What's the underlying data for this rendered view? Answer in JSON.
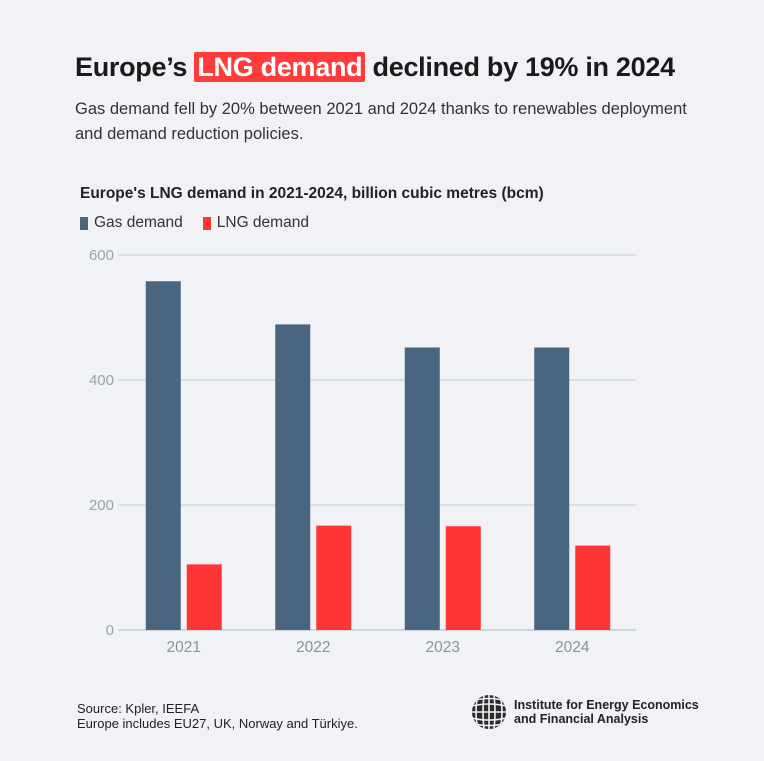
{
  "headline": {
    "before": "Europe’s ",
    "highlight": "LNG demand",
    "after": " declined by 19% in 2024"
  },
  "subtitle": "Gas demand fell by 20% between 2021 and 2024 thanks to renewables deployment and demand reduction policies.",
  "chart_data": {
    "type": "bar",
    "title": "Europe's LNG demand in 2021-2024, billion cubic metres (bcm)",
    "categories": [
      "2021",
      "2022",
      "2023",
      "2024"
    ],
    "series": [
      {
        "name": "Gas demand",
        "color": "#4a6580",
        "values": [
          558,
          489,
          452,
          452
        ]
      },
      {
        "name": "LNG demand",
        "color": "#ff3535",
        "values": [
          105,
          167,
          166,
          135
        ]
      }
    ],
    "yticks": [
      "0",
      "200",
      "400",
      "600"
    ],
    "ylim": [
      0,
      600
    ],
    "grid": true,
    "legend": "top-left"
  },
  "footer": {
    "source": "Source: Kpler, IEEFA",
    "note": "Europe includes EU27, UK, Norway and Türkiye."
  },
  "logo": {
    "line1": "Institute for Energy Economics",
    "line2": "and Financial Analysis",
    "icon": "globe-icon"
  }
}
